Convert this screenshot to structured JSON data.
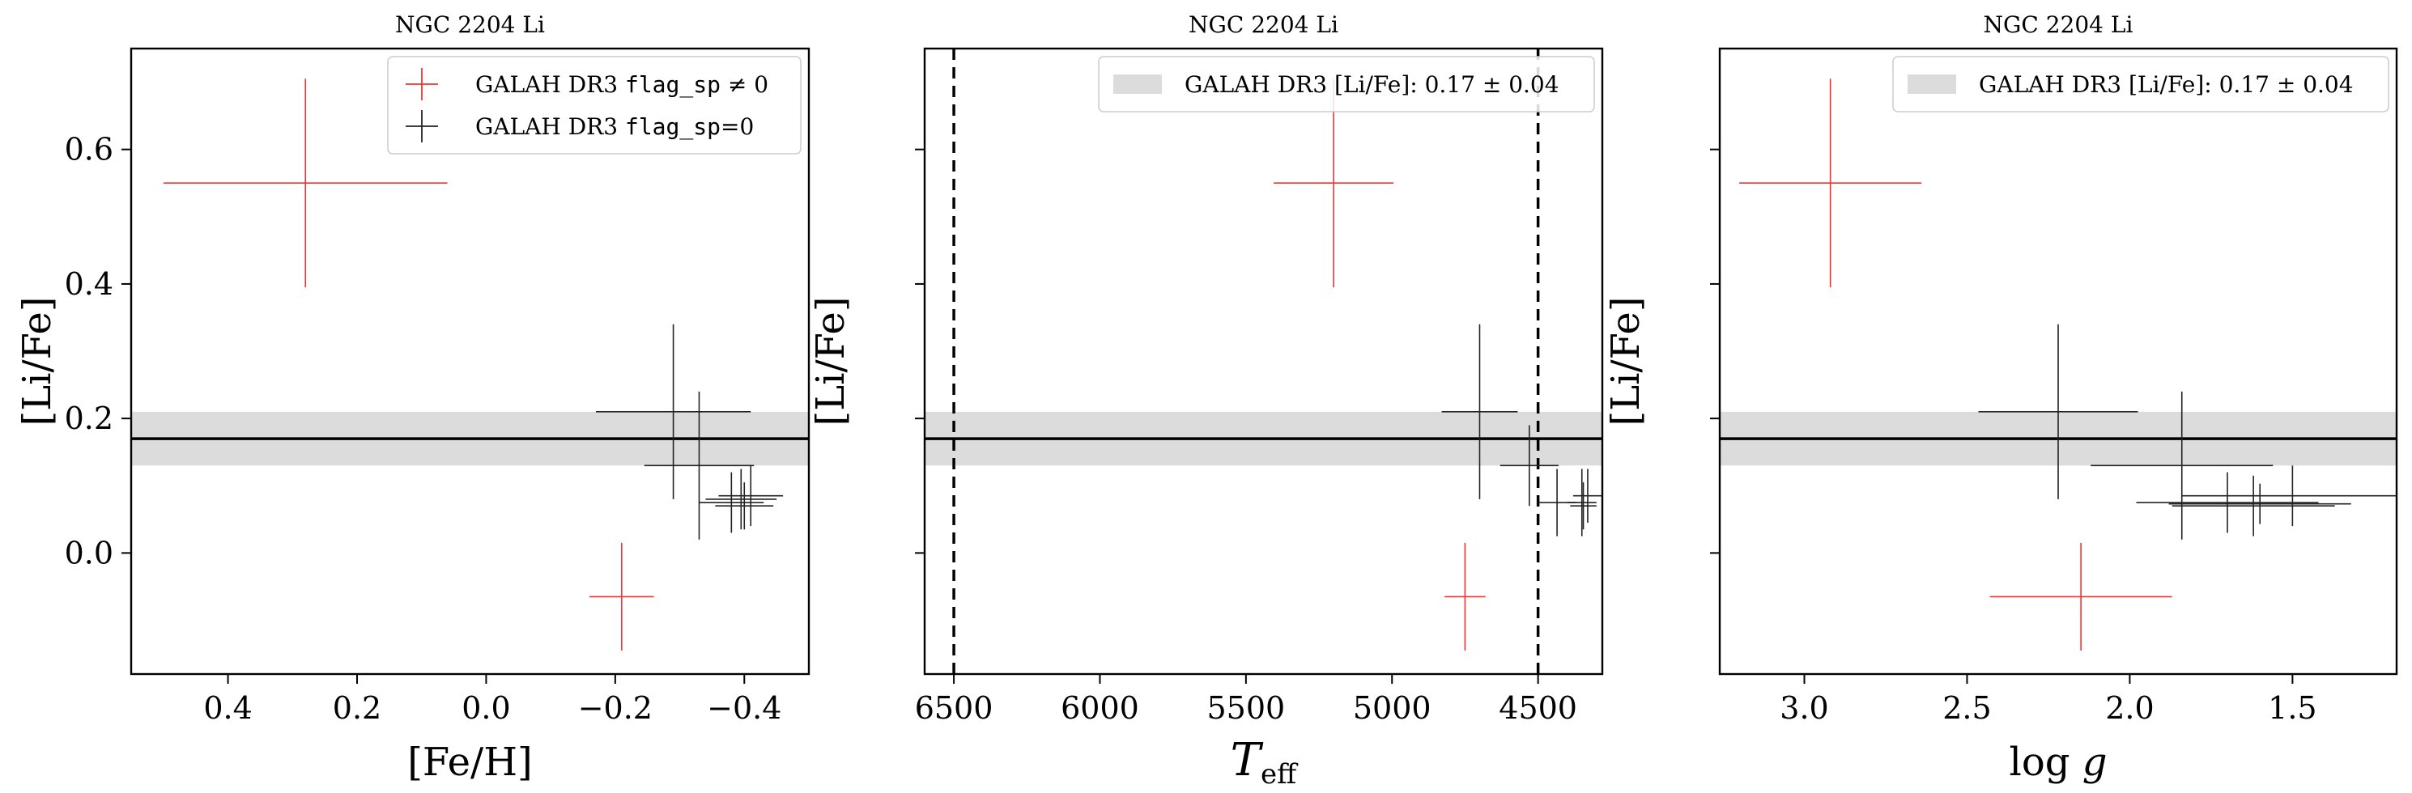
{
  "chart_data": [
    {
      "type": "scatter",
      "title": "NGC 2204 Li",
      "xlabel": "[Fe/H]",
      "ylabel": "[Li/Fe]",
      "xlim": [
        0.55,
        -0.5
      ],
      "ylim": [
        -0.18,
        0.75
      ],
      "xticks": [
        0.4,
        0.2,
        0.0,
        -0.2,
        -0.4
      ],
      "xtick_labels": [
        "0.4",
        "0.2",
        "0.0",
        "−0.2",
        "−0.4"
      ],
      "yticks": [
        0.0,
        0.2,
        0.4,
        0.6
      ],
      "ytick_labels": [
        "0.0",
        "0.2",
        "0.4",
        "0.6"
      ],
      "show_yticklabels": true,
      "band": {
        "center": 0.17,
        "half_width": 0.04,
        "line_color": "#000000",
        "fill_color": "#dcdcdc"
      },
      "vlines": [],
      "legend": {
        "position": "top-right",
        "entries": [
          {
            "label_pre": "GALAH DR3 ",
            "label_code": "flag_sp",
            "label_post": " ≠ 0",
            "color": "#ee3333",
            "kind": "cross"
          },
          {
            "label_pre": "GALAH DR3 ",
            "label_code": "flag_sp",
            "label_post": "=0",
            "color": "#222222",
            "kind": "cross"
          }
        ]
      },
      "series": [
        {
          "name": "GALAH DR3 flag_sp ≠ 0",
          "color": "#ee3333",
          "points": [
            {
              "x": 0.28,
              "y": 0.55,
              "xerr": 0.22,
              "yerr": 0.155
            },
            {
              "x": -0.21,
              "y": -0.065,
              "xerr": 0.05,
              "yerr": 0.08
            }
          ]
        },
        {
          "name": "GALAH DR3 flag_sp=0",
          "color": "#222222",
          "points": [
            {
              "x": -0.29,
              "y": 0.21,
              "xerr": 0.12,
              "yerr": 0.13
            },
            {
              "x": -0.33,
              "y": 0.13,
              "xerr": 0.085,
              "yerr": 0.11
            },
            {
              "x": -0.38,
              "y": 0.075,
              "xerr": 0.05,
              "yerr": 0.045
            },
            {
              "x": -0.395,
              "y": 0.08,
              "xerr": 0.055,
              "yerr": 0.045
            },
            {
              "x": -0.41,
              "y": 0.085,
              "xerr": 0.05,
              "yerr": 0.045
            },
            {
              "x": -0.4,
              "y": 0.07,
              "xerr": 0.045,
              "yerr": 0.035
            }
          ]
        }
      ]
    },
    {
      "type": "scatter",
      "title": "NGC 2204 Li",
      "xlabel": "T_eff",
      "ylabel": "[Li/Fe]",
      "xlim": [
        6600,
        4280
      ],
      "ylim": [
        -0.18,
        0.75
      ],
      "xticks": [
        6500,
        6000,
        5500,
        5000,
        4500
      ],
      "xtick_labels": [
        "6500",
        "6000",
        "5500",
        "5000",
        "4500"
      ],
      "yticks": [
        0.0,
        0.2,
        0.4,
        0.6
      ],
      "ytick_labels": [
        "",
        "",
        "",
        ""
      ],
      "show_yticklabels": false,
      "band": {
        "center": 0.17,
        "half_width": 0.04,
        "line_color": "#000000",
        "fill_color": "#dcdcdc"
      },
      "vlines": [
        6500,
        4500
      ],
      "legend": {
        "position": "top-right",
        "entries": [
          {
            "label_pre": "GALAH DR3 [Li/Fe]: 0.17 ± 0.04",
            "label_code": "",
            "label_post": "",
            "color": "#dcdcdc",
            "kind": "patch"
          }
        ]
      },
      "series": [
        {
          "name": "GALAH DR3 flag_sp ≠ 0",
          "color": "#ee3333",
          "points": [
            {
              "x": 5200,
              "y": 0.55,
              "xerr": 205,
              "yerr": 0.155
            },
            {
              "x": 4750,
              "y": -0.065,
              "xerr": 70,
              "yerr": 0.08
            }
          ]
        },
        {
          "name": "GALAH DR3 flag_sp=0",
          "color": "#222222",
          "points": [
            {
              "x": 4700,
              "y": 0.21,
              "xerr": 130,
              "yerr": 0.13
            },
            {
              "x": 4530,
              "y": 0.13,
              "xerr": 100,
              "yerr": 0.06
            },
            {
              "x": 4435,
              "y": 0.075,
              "xerr": 65,
              "yerr": 0.05
            },
            {
              "x": 4350,
              "y": 0.075,
              "xerr": 50,
              "yerr": 0.05
            },
            {
              "x": 4330,
              "y": 0.085,
              "xerr": 50,
              "yerr": 0.04
            },
            {
              "x": 4345,
              "y": 0.07,
              "xerr": 45,
              "yerr": 0.035
            }
          ]
        }
      ]
    },
    {
      "type": "scatter",
      "title": "NGC 2204 Li",
      "xlabel": "log g",
      "ylabel": "[Li/Fe]",
      "xlim": [
        3.26,
        1.18
      ],
      "ylim": [
        -0.18,
        0.75
      ],
      "xticks": [
        3.0,
        2.5,
        2.0,
        1.5
      ],
      "xtick_labels": [
        "3.0",
        "2.5",
        "2.0",
        "1.5"
      ],
      "yticks": [
        0.0,
        0.2,
        0.4,
        0.6
      ],
      "ytick_labels": [
        "",
        "",
        "",
        ""
      ],
      "show_yticklabels": false,
      "band": {
        "center": 0.17,
        "half_width": 0.04,
        "line_color": "#000000",
        "fill_color": "#dcdcdc"
      },
      "vlines": [],
      "legend": {
        "position": "top-right",
        "entries": [
          {
            "label_pre": "GALAH DR3 [Li/Fe]: 0.17 ± 0.04",
            "label_code": "",
            "label_post": "",
            "color": "#dcdcdc",
            "kind": "patch"
          }
        ]
      },
      "series": [
        {
          "name": "GALAH DR3 flag_sp ≠ 0",
          "color": "#ee3333",
          "points": [
            {
              "x": 2.92,
              "y": 0.55,
              "xerr": 0.28,
              "yerr": 0.155
            },
            {
              "x": 2.15,
              "y": -0.065,
              "xerr": 0.28,
              "yerr": 0.08
            }
          ]
        },
        {
          "name": "GALAH DR3 flag_sp=0",
          "color": "#222222",
          "points": [
            {
              "x": 2.22,
              "y": 0.21,
              "xerr": 0.245,
              "yerr": 0.13
            },
            {
              "x": 1.84,
              "y": 0.13,
              "xerr": 0.28,
              "yerr": 0.11
            },
            {
              "x": 1.7,
              "y": 0.075,
              "xerr": 0.28,
              "yerr": 0.045
            },
            {
              "x": 1.62,
              "y": 0.07,
              "xerr": 0.25,
              "yerr": 0.045
            },
            {
              "x": 1.5,
              "y": 0.085,
              "xerr": 0.34,
              "yerr": 0.045
            },
            {
              "x": 1.6,
              "y": 0.073,
              "xerr": 0.28,
              "yerr": 0.03
            }
          ]
        }
      ]
    }
  ]
}
